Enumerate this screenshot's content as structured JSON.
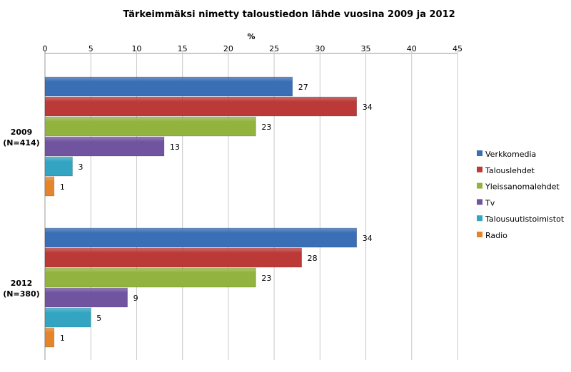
{
  "chart_data": {
    "type": "bar",
    "orientation": "horizontal",
    "title": "Tärkeimmäksi nimetty taloustiedon lähde vuosina 2009 ja 2012",
    "xlabel": "%",
    "ylabel": "",
    "xlim": [
      0,
      45
    ],
    "xticks": [
      0,
      5,
      10,
      15,
      20,
      25,
      30,
      35,
      40,
      45
    ],
    "grid": true,
    "legend_position": "right",
    "categories": [
      {
        "line1": "2009",
        "line2": "(N=414)"
      },
      {
        "line1": "2012",
        "line2": "(N=380)"
      }
    ],
    "series": [
      {
        "name": "Verkkomedia",
        "color": "#3a6fb5",
        "values": [
          27,
          34
        ]
      },
      {
        "name": "Talouslehdet",
        "color": "#bb3a38",
        "values": [
          34,
          28
        ]
      },
      {
        "name": "Yleissanomalehdet",
        "color": "#93b33f",
        "values": [
          23,
          23
        ]
      },
      {
        "name": "Tv",
        "color": "#7154a0",
        "values": [
          13,
          9
        ]
      },
      {
        "name": "Talousuutistoimistot",
        "color": "#33a5c2",
        "values": [
          3,
          5
        ]
      },
      {
        "name": "Radio",
        "color": "#e5852b",
        "values": [
          1,
          1
        ]
      }
    ]
  }
}
